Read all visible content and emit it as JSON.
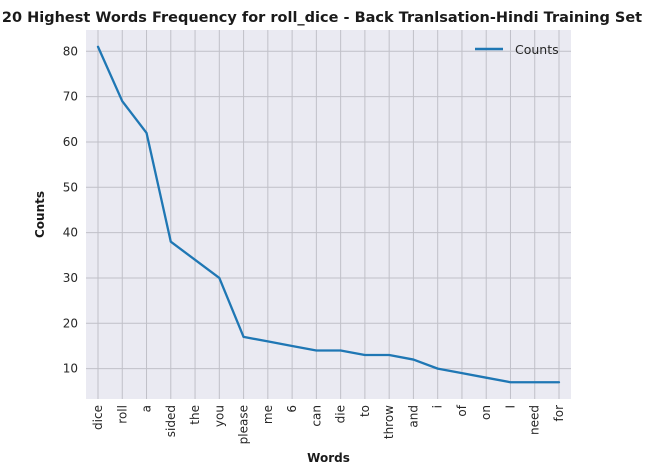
{
  "chart_data": {
    "type": "line",
    "title": "20 Highest Words Frequency for roll_dice - Back Tranlsation-Hindi Training Set",
    "xlabel": "Words",
    "ylabel": "Counts",
    "categories": [
      "dice",
      "roll",
      "a",
      "sided",
      "the",
      "you",
      "please",
      "me",
      "6",
      "can",
      "die",
      "to",
      "throw",
      "and",
      "i",
      "of",
      "on",
      "I",
      "need",
      "for"
    ],
    "series": [
      {
        "name": "Counts",
        "color": "#1f77b4",
        "values": [
          81,
          69,
          62,
          38,
          34,
          30,
          17,
          16,
          15,
          14,
          14,
          13,
          13,
          12,
          10,
          9,
          8,
          7,
          7,
          7
        ]
      }
    ],
    "ylim": [
      3.3,
      84.7
    ],
    "yticks": [
      10,
      20,
      30,
      40,
      50,
      60,
      70,
      80
    ],
    "grid": true,
    "legend_position": "top-right",
    "background_color": "#eaeaf2",
    "grid_color": "#c0c0c8"
  }
}
